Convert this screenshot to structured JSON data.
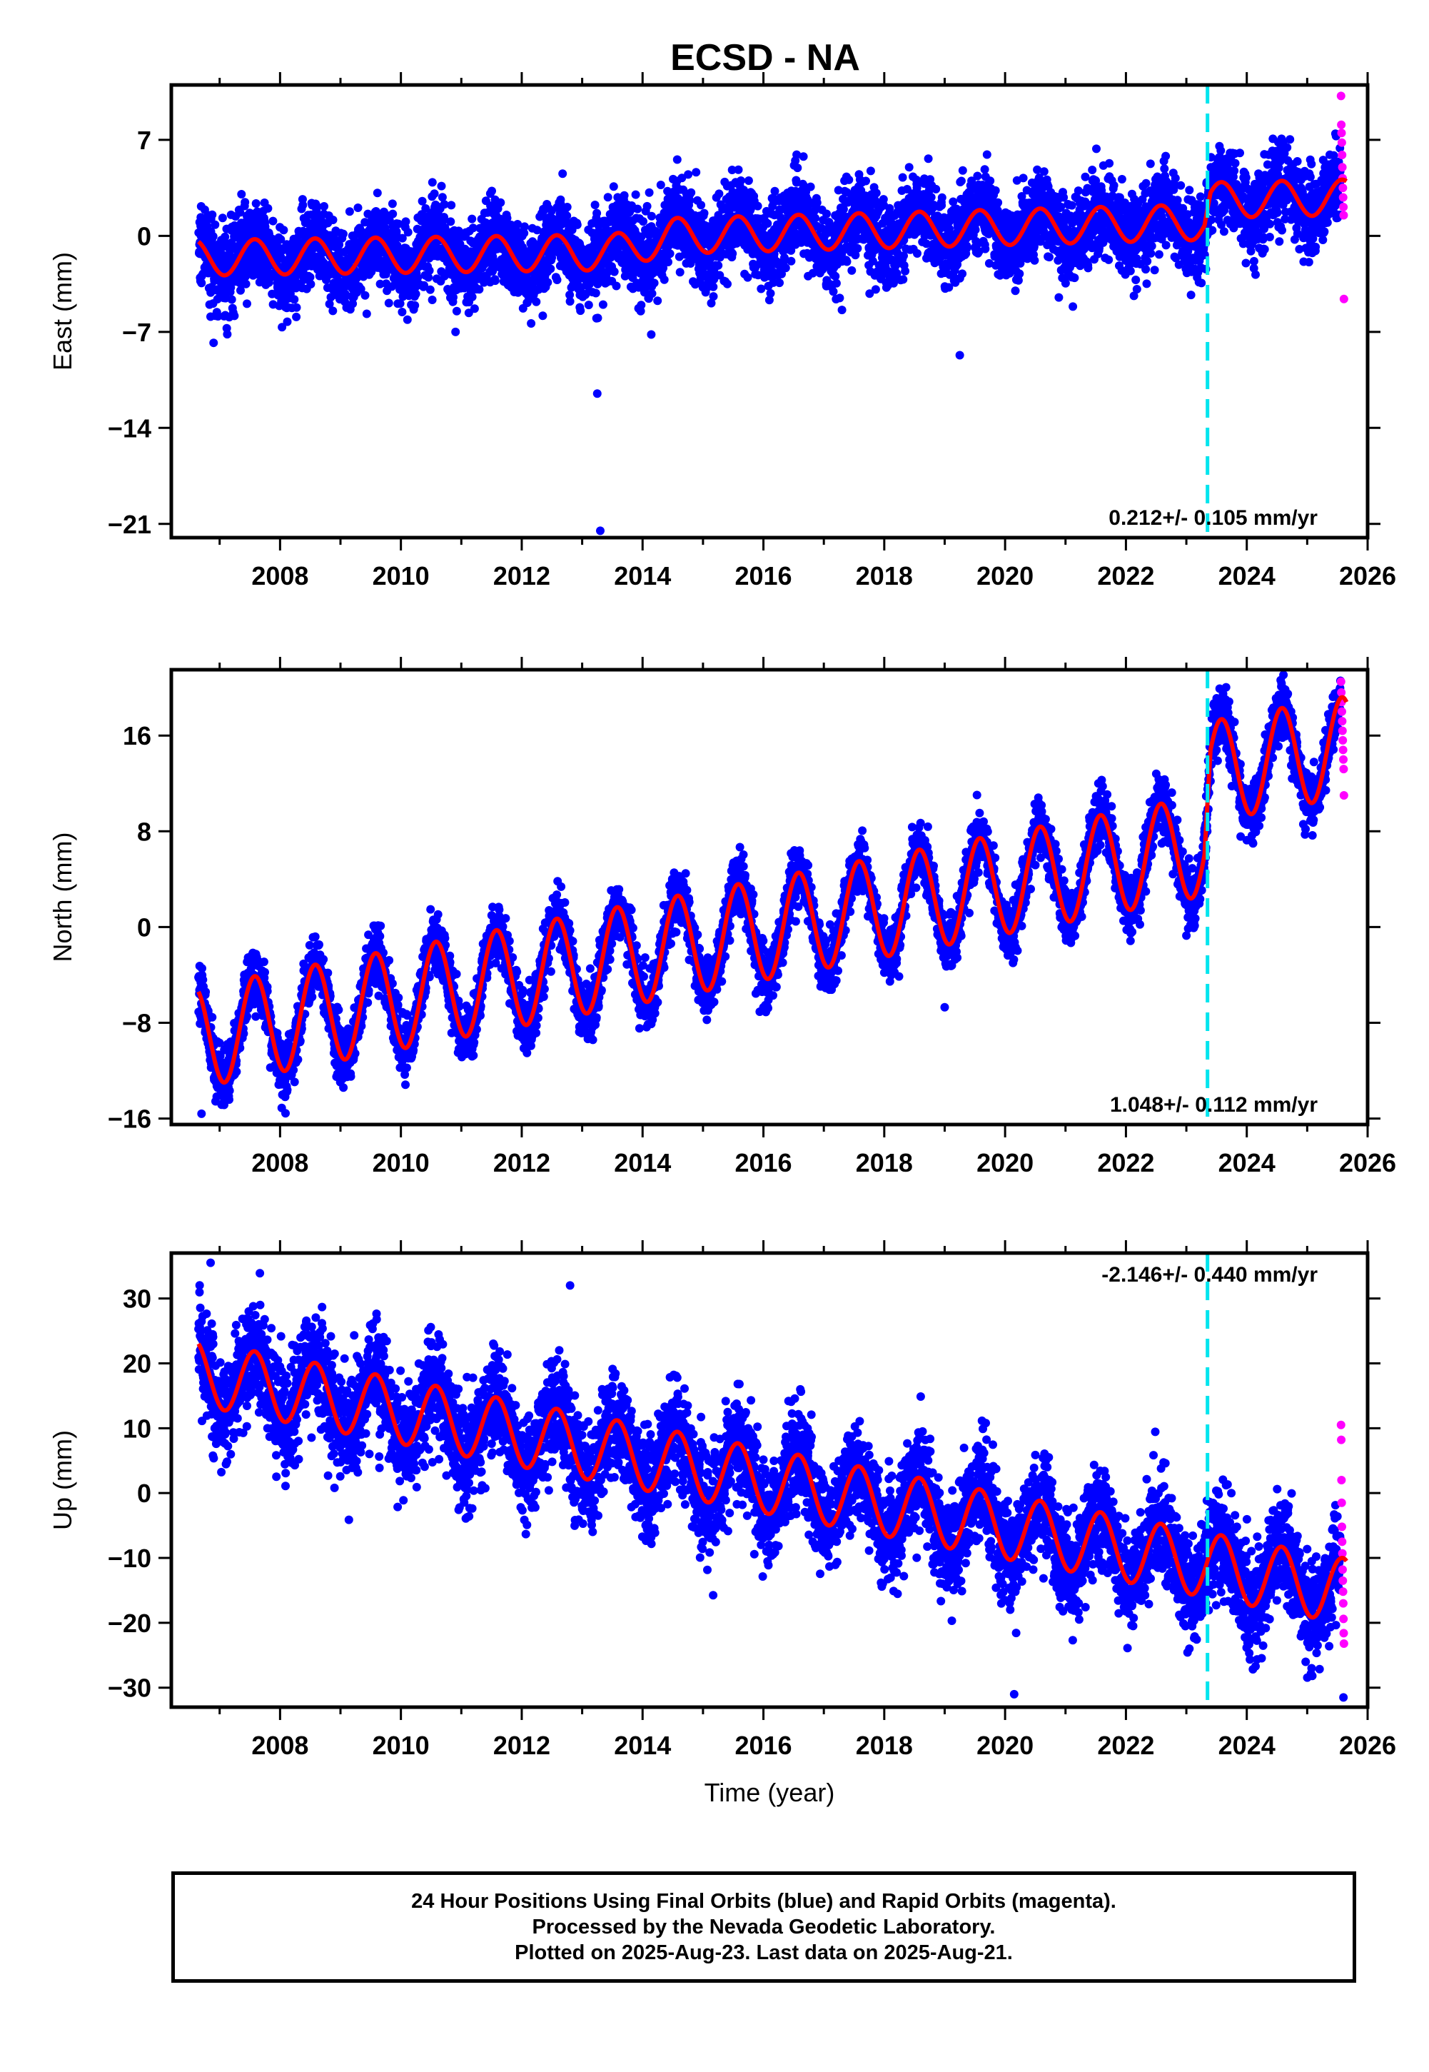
{
  "chart_data": [
    {
      "type": "scatter",
      "title": "ECSD - NA",
      "xlabel": "",
      "ylabel": "East (mm)",
      "xlim": [
        2006.2,
        2026.0
      ],
      "ylim": [
        -22,
        11
      ],
      "x_ticks": [
        2008,
        2010,
        2012,
        2014,
        2016,
        2018,
        2020,
        2022,
        2024,
        2026
      ],
      "y_ticks": [
        7,
        0,
        -7,
        -14,
        -21
      ],
      "y_tick_labels": [
        "7",
        "0",
        "−7",
        "−14",
        "−21"
      ],
      "rate_text": "0.212+/- 0.105 mm/yr",
      "rate_position": "bottom-right",
      "event_line_x": 2023.35,
      "series": [
        {
          "kind": "final-orbits",
          "color": "#0000ff",
          "t_start": 2006.65,
          "t_end": 2025.55,
          "trend": [
            [
              2006.65,
              -1.6
            ],
            [
              2013.5,
              -1.2
            ],
            [
              2014.5,
              0.0
            ],
            [
              2023.3,
              1.0
            ],
            [
              2023.4,
              2.6
            ],
            [
              2025.55,
              2.8
            ]
          ],
          "seasonal_amplitude": 1.3,
          "scatter_sd": 1.5
        },
        {
          "kind": "rapid-orbits",
          "color": "#ff00ff",
          "t_start": 2025.56,
          "t_end": 2025.64,
          "points": [
            10.2,
            8.1,
            7.5,
            6.8,
            5.9,
            5.0,
            4.2,
            3.5,
            2.8,
            2.1,
            1.5,
            -4.6
          ]
        },
        {
          "kind": "model-fit",
          "color": "#ff0000"
        }
      ],
      "outliers": [
        [
          2013.25,
          -11.5
        ],
        [
          2013.3,
          -21.5
        ],
        [
          2019.25,
          -8.7
        ],
        [
          2017.3,
          -5.4
        ],
        [
          2006.9,
          -7.8
        ]
      ]
    },
    {
      "type": "scatter",
      "title": "",
      "xlabel": "",
      "ylabel": "North (mm)",
      "xlim": [
        2006.2,
        2026.0
      ],
      "ylim": [
        -16.5,
        21.5
      ],
      "x_ticks": [
        2008,
        2010,
        2012,
        2014,
        2016,
        2018,
        2020,
        2022,
        2024,
        2026
      ],
      "y_ticks": [
        16,
        8,
        0,
        -8,
        -16
      ],
      "y_tick_labels": [
        "16",
        "8",
        "0",
        "−8",
        "−16"
      ],
      "rate_text": "1.048+/- 0.112 mm/yr",
      "rate_position": "bottom-right",
      "event_line_x": 2023.35,
      "series": [
        {
          "kind": "final-orbits",
          "color": "#0000ff",
          "t_start": 2006.65,
          "t_end": 2025.55,
          "trend": [
            [
              2006.65,
              -9.2
            ],
            [
              2023.3,
              6.8
            ],
            [
              2023.4,
              13.0
            ],
            [
              2025.55,
              15.0
            ]
          ],
          "seasonal_amplitude": 4.2,
          "scatter_sd": 1.2
        },
        {
          "kind": "rapid-orbits",
          "color": "#ff00ff",
          "t_start": 2025.56,
          "t_end": 2025.64,
          "points": [
            20.5,
            19.6,
            18.8,
            18.0,
            17.2,
            16.4,
            15.6,
            14.8,
            14.0,
            13.2,
            11.0
          ]
        },
        {
          "kind": "model-fit",
          "color": "#ff0000"
        }
      ],
      "outliers": [
        [
          2019.0,
          -6.7
        ],
        [
          2006.7,
          -15.6
        ]
      ]
    },
    {
      "type": "scatter",
      "title": "",
      "xlabel": "Time (year)",
      "ylabel": "Up (mm)",
      "xlim": [
        2006.2,
        2026.0
      ],
      "ylim": [
        -33,
        37
      ],
      "x_ticks": [
        2008,
        2010,
        2012,
        2014,
        2016,
        2018,
        2020,
        2022,
        2024,
        2026
      ],
      "y_ticks": [
        30,
        20,
        10,
        0,
        -10,
        -20,
        -30
      ],
      "y_tick_labels": [
        "30",
        "20",
        "10",
        "0",
        "−10",
        "−20",
        "−30"
      ],
      "rate_text": "-2.146+/- 0.440 mm/yr",
      "rate_position": "top-right",
      "event_line_x": 2023.35,
      "series": [
        {
          "kind": "final-orbits",
          "color": "#0000ff",
          "t_start": 2006.65,
          "t_end": 2025.55,
          "trend": [
            [
              2006.65,
              18.5
            ],
            [
              2025.55,
              -15.0
            ]
          ],
          "seasonal_amplitude": 5.0,
          "scatter_sd": 4.0
        },
        {
          "kind": "rapid-orbits",
          "color": "#ff00ff",
          "t_start": 2025.56,
          "t_end": 2025.64,
          "points": [
            10.5,
            8.2,
            2.0,
            -1.5,
            -5.2,
            -7.5,
            -9.3,
            -11.8,
            -13.5,
            -15.2,
            -17.0,
            -19.4,
            -21.6,
            -23.2
          ]
        },
        {
          "kind": "model-fit",
          "color": "#ff0000"
        }
      ],
      "outliers": [
        [
          2006.85,
          35.5
        ],
        [
          2012.8,
          32.0
        ],
        [
          2020.15,
          -31.0
        ],
        [
          2025.6,
          -31.5
        ]
      ]
    }
  ],
  "footer": {
    "line1": "24 Hour Positions Using Final Orbits (blue) and Rapid Orbits (magenta).",
    "line2": "Processed by the Nevada Geodetic Laboratory.",
    "line3": "Plotted on 2025-Aug-23. Last data on 2025-Aug-21."
  }
}
